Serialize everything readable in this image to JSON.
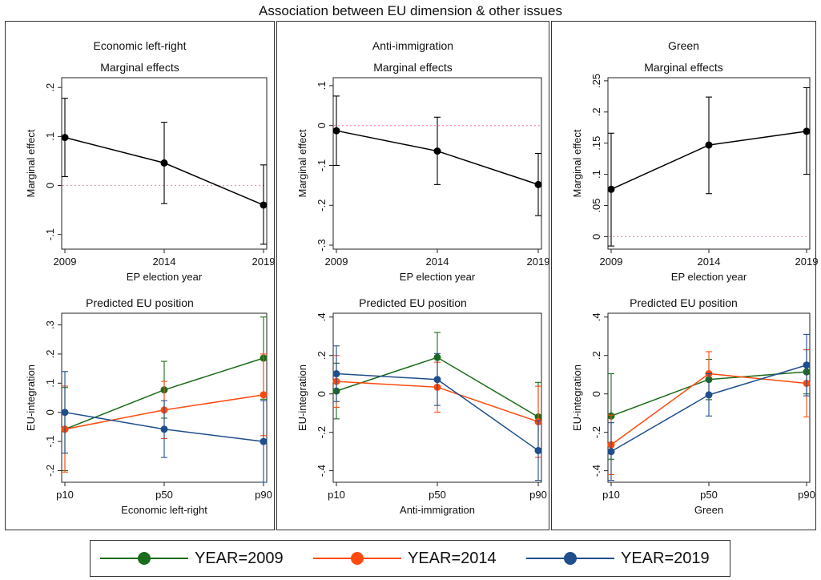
{
  "title": "Association between EU dimension & other issues",
  "colors": {
    "y2009": "#1a6b1a",
    "y2014": "#ff4a0f",
    "y2019": "#1f4e8c",
    "zero": "#ff8fa8",
    "me": "#000000"
  },
  "legend": [
    {
      "label": "YEAR=2009",
      "color": "#1a6b1a"
    },
    {
      "label": "YEAR=2014",
      "color": "#ff4a0f"
    },
    {
      "label": "YEAR=2019",
      "color": "#1f4e8c"
    }
  ],
  "chart_data": [
    {
      "panel": "Economic left-right",
      "title": "Marginal effects",
      "type": "line",
      "xlabel": "EP election year",
      "ylabel": "Marginal effect",
      "x": [
        "2009",
        "2014",
        "2019"
      ],
      "ylim": [
        -0.13,
        0.22
      ],
      "yticks": [
        -0.1,
        0,
        0.1,
        0.2
      ],
      "yticklabels": [
        "-.1",
        "0",
        ".1",
        ".2"
      ],
      "refline": 0,
      "series": [
        {
          "values": [
            0.098,
            0.046,
            -0.04
          ],
          "lo": [
            0.018,
            -0.037,
            -0.12
          ],
          "hi": [
            0.178,
            0.129,
            0.042
          ]
        }
      ]
    },
    {
      "panel": "Anti-immigration",
      "title": "Marginal effects",
      "type": "line",
      "xlabel": "EP election year",
      "ylabel": "Marginal effect",
      "x": [
        "2009",
        "2014",
        "2019"
      ],
      "ylim": [
        -0.31,
        0.12
      ],
      "yticks": [
        -0.3,
        -0.2,
        -0.1,
        0,
        0.1
      ],
      "yticklabels": [
        "-.3",
        "-.2",
        "-.1",
        "0",
        ".1"
      ],
      "refline": 0,
      "series": [
        {
          "values": [
            -0.013,
            -0.064,
            -0.148
          ],
          "lo": [
            -0.1,
            -0.148,
            -0.226
          ],
          "hi": [
            0.074,
            0.021,
            -0.07
          ]
        }
      ]
    },
    {
      "panel": "Green",
      "title": "Marginal effects",
      "type": "line",
      "xlabel": "EP election year",
      "ylabel": "Marginal effect",
      "x": [
        "2009",
        "2014",
        "2019"
      ],
      "ylim": [
        -0.02,
        0.255
      ],
      "yticks": [
        0,
        0.05,
        0.1,
        0.15,
        0.2,
        0.25
      ],
      "yticklabels": [
        "0",
        ".05",
        ".1",
        ".15",
        ".2",
        ".25"
      ],
      "refline": 0,
      "series": [
        {
          "values": [
            0.076,
            0.147,
            0.169
          ],
          "lo": [
            -0.015,
            0.069,
            0.1
          ],
          "hi": [
            0.166,
            0.224,
            0.239
          ]
        }
      ]
    },
    {
      "panel": "Economic left-right",
      "title": "Predicted EU position",
      "type": "line",
      "xlabel": "Economic left-right",
      "ylabel": "EU-integration",
      "x": [
        "p10",
        "p50",
        "p90"
      ],
      "ylim": [
        -0.24,
        0.34
      ],
      "yticks": [
        -0.2,
        -0.1,
        0,
        0.1,
        0.2,
        0.3
      ],
      "yticklabels": [
        "-.2",
        "-.1",
        "0",
        ".1",
        ".2",
        ".3"
      ],
      "series": [
        {
          "name": "YEAR=2009",
          "color": "#1a6b1a",
          "values": [
            -0.058,
            0.077,
            0.186
          ],
          "lo": [
            -0.2,
            -0.02,
            0.045
          ],
          "hi": [
            0.085,
            0.175,
            0.327
          ]
        },
        {
          "name": "YEAR=2014",
          "color": "#ff4a0f",
          "values": [
            -0.058,
            0.008,
            0.06
          ],
          "lo": [
            -0.205,
            -0.09,
            -0.08
          ],
          "hi": [
            0.09,
            0.106,
            0.2
          ]
        },
        {
          "name": "YEAR=2019",
          "color": "#1f4e8c",
          "values": [
            0.0,
            -0.058,
            -0.1
          ],
          "lo": [
            -0.14,
            -0.155,
            -0.24
          ],
          "hi": [
            0.14,
            0.04,
            0.04
          ]
        }
      ]
    },
    {
      "panel": "Anti-immigration",
      "title": "Predicted EU position",
      "type": "line",
      "xlabel": "Anti-immigration",
      "ylabel": "EU-integration",
      "x": [
        "p10",
        "p50",
        "p90"
      ],
      "ylim": [
        -0.46,
        0.42
      ],
      "yticks": [
        -0.4,
        -0.2,
        0,
        0.2,
        0.4
      ],
      "yticklabels": [
        "-.4",
        "-.2",
        "0",
        ".2",
        ".4"
      ],
      "series": [
        {
          "name": "YEAR=2009",
          "color": "#1a6b1a",
          "values": [
            0.015,
            0.19,
            -0.12
          ],
          "lo": [
            -0.13,
            0.07,
            -0.3
          ],
          "hi": [
            0.16,
            0.32,
            0.06
          ]
        },
        {
          "name": "YEAR=2014",
          "color": "#ff4a0f",
          "values": [
            0.065,
            0.035,
            -0.145
          ],
          "lo": [
            -0.07,
            -0.095,
            -0.33
          ],
          "hi": [
            0.2,
            0.165,
            0.04
          ]
        },
        {
          "name": "YEAR=2019",
          "color": "#1f4e8c",
          "values": [
            0.105,
            0.075,
            -0.295
          ],
          "lo": [
            -0.04,
            -0.06,
            -0.45
          ],
          "hi": [
            0.25,
            0.21,
            -0.14
          ]
        }
      ]
    },
    {
      "panel": "Green",
      "title": "Predicted EU position",
      "type": "line",
      "xlabel": "Green",
      "ylabel": "EU-integration",
      "x": [
        "p10",
        "p50",
        "p90"
      ],
      "ylim": [
        -0.46,
        0.42
      ],
      "yticks": [
        -0.4,
        -0.2,
        0,
        0.2,
        0.4
      ],
      "yticklabels": [
        "-.4",
        "-.2",
        "0",
        ".2",
        ".4"
      ],
      "series": [
        {
          "name": "YEAR=2009",
          "color": "#1a6b1a",
          "values": [
            -0.115,
            0.075,
            0.115
          ],
          "lo": [
            -0.34,
            -0.03,
            0.0
          ],
          "hi": [
            0.105,
            0.18,
            0.23
          ]
        },
        {
          "name": "YEAR=2014",
          "color": "#ff4a0f",
          "values": [
            -0.265,
            0.105,
            0.055
          ],
          "lo": [
            -0.42,
            -0.01,
            -0.12
          ],
          "hi": [
            -0.11,
            0.22,
            0.23
          ]
        },
        {
          "name": "YEAR=2019",
          "color": "#1f4e8c",
          "values": [
            -0.3,
            -0.005,
            0.15
          ],
          "lo": [
            -0.45,
            -0.115,
            -0.01
          ],
          "hi": [
            -0.15,
            0.105,
            0.31
          ]
        }
      ]
    }
  ]
}
